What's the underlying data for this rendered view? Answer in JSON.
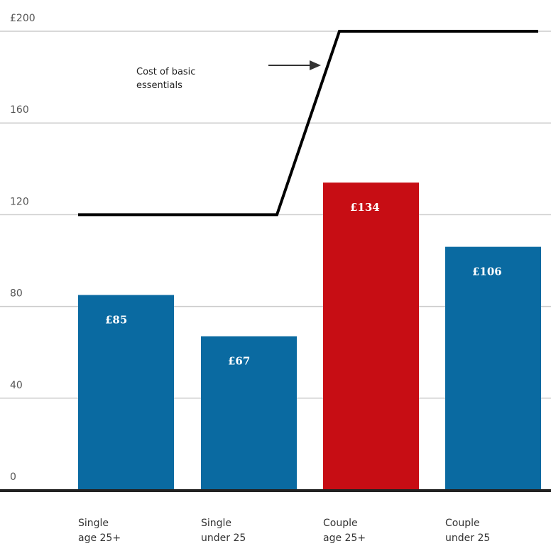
{
  "chart_data": {
    "type": "bar",
    "title": "",
    "xlabel": "",
    "ylabel": "",
    "ylim": [
      0,
      200
    ],
    "y_ticks": [
      "0",
      "40",
      "80",
      "120",
      "160",
      "£200"
    ],
    "y_tick_values": [
      0,
      40,
      80,
      120,
      160,
      200
    ],
    "grid": true,
    "categories": [
      [
        "Single",
        "age 25+"
      ],
      [
        "Single",
        "under 25"
      ],
      [
        "Couple",
        "age 25+"
      ],
      [
        "Couple",
        "under 25"
      ]
    ],
    "values": [
      85,
      67,
      134,
      106
    ],
    "value_labels": [
      "£85",
      "£67",
      "£134",
      "£106"
    ],
    "highlight_index": 2,
    "line": {
      "annotation": [
        "Cost of basic",
        "essentials"
      ],
      "values": [
        120,
        120,
        200,
        200
      ]
    },
    "colors": {
      "bar": "#0a6aa1",
      "highlight": "#c70d14",
      "line": "#000000",
      "grid": "#cccccc",
      "baseline": "#222222"
    }
  }
}
